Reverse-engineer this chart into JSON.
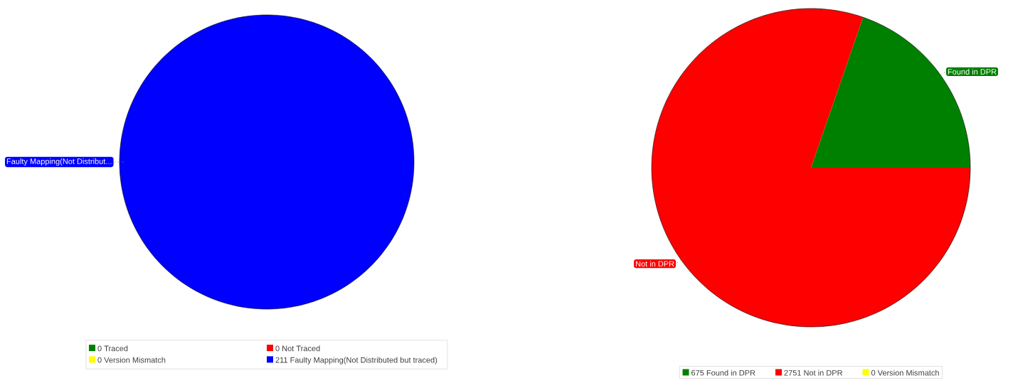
{
  "chart_data": [
    {
      "type": "pie",
      "categories": [
        "Traced",
        "Not Traced",
        "Version Mismatch",
        "Faulty Mapping(Not Distributed but traced)"
      ],
      "values": [
        0,
        0,
        0,
        211
      ],
      "value_labels": [
        "0",
        "0",
        "0",
        "211"
      ],
      "colors": [
        "#008000",
        "#ff0000",
        "#ffff00",
        "#0000ff"
      ],
      "legend": "bottom",
      "data_labels": true,
      "annotations": [
        "Faulty Mapping(Not Distribut..."
      ]
    },
    {
      "type": "pie",
      "categories": [
        "Found in DPR",
        "Not in DPR",
        "Version Mismatch"
      ],
      "values": [
        675,
        2751,
        0
      ],
      "value_labels": [
        "675",
        "2751",
        "0"
      ],
      "colors": [
        "#008000",
        "#ff0000",
        "#ffff00"
      ],
      "legend": "bottom",
      "data_labels": true,
      "annotations": [
        "Found in DPR",
        "Not in DPR"
      ]
    }
  ]
}
